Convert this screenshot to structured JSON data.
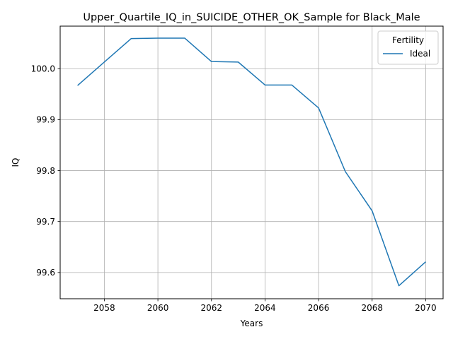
{
  "chart_data": {
    "type": "line",
    "title": "Upper_Quartile_IQ_in_SUICIDE_OTHER_OK_Sample for Black_Male",
    "xlabel": "Years",
    "ylabel": "IQ",
    "xlim": [
      2056.35,
      2070.65
    ],
    "ylim": [
      99.5485,
      100.0835
    ],
    "xticks": [
      2058,
      2060,
      2062,
      2064,
      2066,
      2068,
      2070
    ],
    "xtick_labels": [
      "2058",
      "2060",
      "2062",
      "2064",
      "2066",
      "2068",
      "2070"
    ],
    "yticks": [
      99.6,
      99.7,
      99.8,
      99.9,
      100.0
    ],
    "ytick_labels": [
      "99.6",
      "99.7",
      "99.8",
      "99.9",
      "100.0"
    ],
    "grid": true,
    "legend": {
      "title": "Fertility",
      "placement": "top-right"
    },
    "series": [
      {
        "name": "Ideal",
        "color": "#1f77b4",
        "x": [
          2057,
          2058,
          2059,
          2060,
          2061,
          2062,
          2063,
          2064,
          2065,
          2066,
          2067,
          2068,
          2069,
          2070
        ],
        "y": [
          99.967,
          100.013,
          100.059,
          100.06,
          100.06,
          100.014,
          100.013,
          99.968,
          99.968,
          99.923,
          99.798,
          99.721,
          99.574,
          99.621
        ]
      }
    ]
  }
}
